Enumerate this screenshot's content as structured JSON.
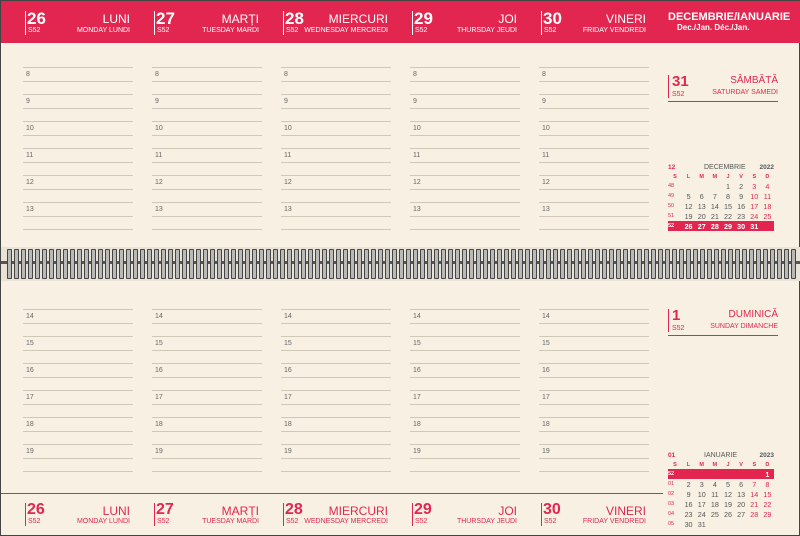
{
  "top": {
    "month_title": "DECEMBRIE/IANUARIE",
    "month_sub": "Dec./Jan. Déc./Jan.",
    "days": [
      {
        "num": "26",
        "wk": "S52",
        "name": "LUNI",
        "sub": "MONDAY LUNDI"
      },
      {
        "num": "27",
        "wk": "S52",
        "name": "MARȚI",
        "sub": "TUESDAY MARDI"
      },
      {
        "num": "28",
        "wk": "S52",
        "name": "MIERCURI",
        "sub": "WEDNESDAY MERCREDI"
      },
      {
        "num": "29",
        "wk": "S52",
        "name": "JOI",
        "sub": "THURSDAY JEUDI"
      },
      {
        "num": "30",
        "wk": "S52",
        "name": "VINERI",
        "sub": "FRIDAY VENDREDI"
      }
    ]
  },
  "hours_top": [
    "8",
    "9",
    "10",
    "11",
    "12",
    "13"
  ],
  "hours_bottom": [
    "14",
    "15",
    "16",
    "17",
    "18",
    "19"
  ],
  "saturday": {
    "num": "31",
    "wk": "S52",
    "name": "SÂMBĂTĂ",
    "sub": "SATURDAY SAMEDI"
  },
  "sunday": {
    "num": "1",
    "wk": "S52",
    "name": "DUMINICĂ",
    "sub": "SUNDAY DIMANCHE"
  },
  "cal_dec": {
    "num": "12",
    "name": "DECEMBRIE",
    "year": "2022",
    "dow": [
      "S",
      "L",
      "M",
      "M",
      "J",
      "V",
      "S",
      "D"
    ],
    "rows": [
      [
        "48",
        "",
        "",
        "",
        "1",
        "2",
        "3",
        "4"
      ],
      [
        "49",
        "5",
        "6",
        "7",
        "8",
        "9",
        "10",
        "11"
      ],
      [
        "50",
        "12",
        "13",
        "14",
        "15",
        "16",
        "17",
        "18"
      ],
      [
        "51",
        "19",
        "20",
        "21",
        "22",
        "23",
        "24",
        "25"
      ],
      [
        "52",
        "26",
        "27",
        "28",
        "29",
        "30",
        "31",
        ""
      ]
    ]
  },
  "cal_jan": {
    "num": "01",
    "name": "IANUARIE",
    "year": "2023",
    "dow": [
      "S",
      "L",
      "M",
      "M",
      "J",
      "V",
      "S",
      "D"
    ],
    "rows": [
      [
        "52",
        "",
        "",
        "",
        "",
        "",
        "",
        "1"
      ],
      [
        "01",
        "2",
        "3",
        "4",
        "5",
        "6",
        "7",
        "8"
      ],
      [
        "02",
        "9",
        "10",
        "11",
        "12",
        "13",
        "14",
        "15"
      ],
      [
        "03",
        "16",
        "17",
        "18",
        "19",
        "20",
        "21",
        "22"
      ],
      [
        "04",
        "23",
        "24",
        "25",
        "26",
        "27",
        "28",
        "29"
      ],
      [
        "05",
        "30",
        "31",
        "",
        "",
        "",
        "",
        ""
      ]
    ]
  },
  "bottom": {
    "days": [
      {
        "num": "26",
        "wk": "S52",
        "name": "LUNI",
        "sub": "MONDAY LUNDI"
      },
      {
        "num": "27",
        "wk": "S52",
        "name": "MARȚI",
        "sub": "TUESDAY MARDI"
      },
      {
        "num": "28",
        "wk": "S52",
        "name": "MIERCURI",
        "sub": "WEDNESDAY MERCREDI"
      },
      {
        "num": "29",
        "wk": "S52",
        "name": "JOI",
        "sub": "THURSDAY JEUDI"
      },
      {
        "num": "30",
        "wk": "S52",
        "name": "VINERI",
        "sub": "FRIDAY VENDREDI"
      }
    ]
  },
  "colors": {
    "accent": "#e2264f",
    "paper": "#f8f1e3"
  }
}
